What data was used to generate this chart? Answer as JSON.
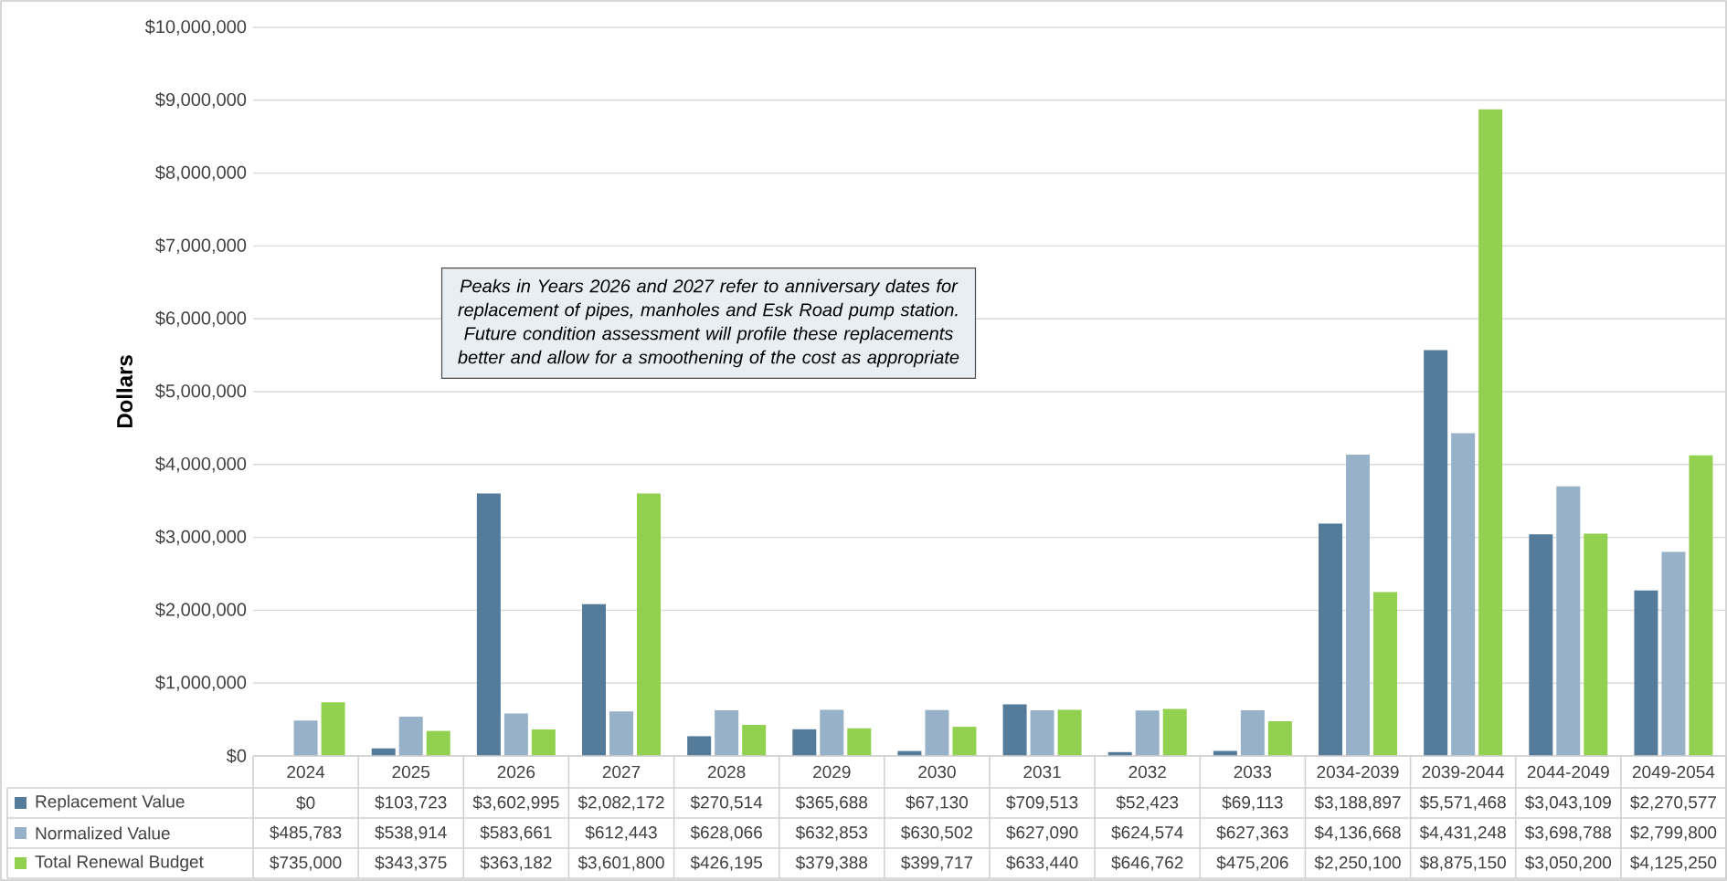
{
  "chart_data": {
    "type": "bar",
    "ylabel": "Dollars",
    "categories": [
      "2024",
      "2025",
      "2026",
      "2027",
      "2028",
      "2029",
      "2030",
      "2031",
      "2032",
      "2033",
      "2034-2039",
      "2039-2044",
      "2044-2049",
      "2049-2054"
    ],
    "series": [
      {
        "name": "Replacement Value",
        "color": "#557b9b",
        "values": [
          0,
          103723,
          3602995,
          2082172,
          270514,
          365688,
          67130,
          709513,
          52423,
          69113,
          3188897,
          5571468,
          3043109,
          2270577
        ],
        "value_labels": [
          "$0",
          "$103,723",
          "$3,602,995",
          "$2,082,172",
          "$270,514",
          "$365,688",
          "$67,130",
          "$709,513",
          "$52,423",
          "$69,113",
          "$3,188,897",
          "$5,571,468",
          "$3,043,109",
          "$2,270,577"
        ]
      },
      {
        "name": "Normalized Value",
        "color": "#96b1c8",
        "values": [
          485783,
          538914,
          583661,
          612443,
          628066,
          632853,
          630502,
          627090,
          624574,
          627363,
          4136668,
          4431248,
          3698788,
          2799800
        ],
        "value_labels": [
          "$485,783",
          "$538,914",
          "$583,661",
          "$612,443",
          "$628,066",
          "$632,853",
          "$630,502",
          "$627,090",
          "$624,574",
          "$627,363",
          "$4,136,668",
          "$4,431,248",
          "$3,698,788",
          "$2,799,800"
        ]
      },
      {
        "name": "Total Renewal Budget",
        "color": "#92d050",
        "values": [
          735000,
          343375,
          363182,
          3601800,
          426195,
          379388,
          399717,
          633440,
          646762,
          475206,
          2250100,
          8875150,
          3050200,
          4125250
        ],
        "value_labels": [
          "$735,000",
          "$343,375",
          "$363,182",
          "$3,601,800",
          "$426,195",
          "$379,388",
          "$399,717",
          "$633,440",
          "$646,762",
          "$475,206",
          "$2,250,100",
          "$8,875,150",
          "$3,050,200",
          "$4,125,250"
        ]
      }
    ],
    "ylim": [
      0,
      10000000
    ],
    "yticks": [
      {
        "value": 0,
        "label": "$0"
      },
      {
        "value": 1000000,
        "label": "$1,000,000"
      },
      {
        "value": 2000000,
        "label": "$2,000,000"
      },
      {
        "value": 3000000,
        "label": "$3,000,000"
      },
      {
        "value": 4000000,
        "label": "$4,000,000"
      },
      {
        "value": 5000000,
        "label": "$5,000,000"
      },
      {
        "value": 6000000,
        "label": "$6,000,000"
      },
      {
        "value": 7000000,
        "label": "$7,000,000"
      },
      {
        "value": 8000000,
        "label": "$8,000,000"
      },
      {
        "value": 9000000,
        "label": "$9,000,000"
      },
      {
        "value": 10000000,
        "label": "$10,000,000"
      }
    ],
    "grid": "y",
    "legend": "bottom left",
    "annotations": [
      "Peaks in Years 2026 and 2027 refer to anniversary dates for replacement of pipes, manholes and Esk Road pump station. Future condition assessment will profile these replacements better and allow for a smoothening of the cost as appropriate"
    ]
  }
}
